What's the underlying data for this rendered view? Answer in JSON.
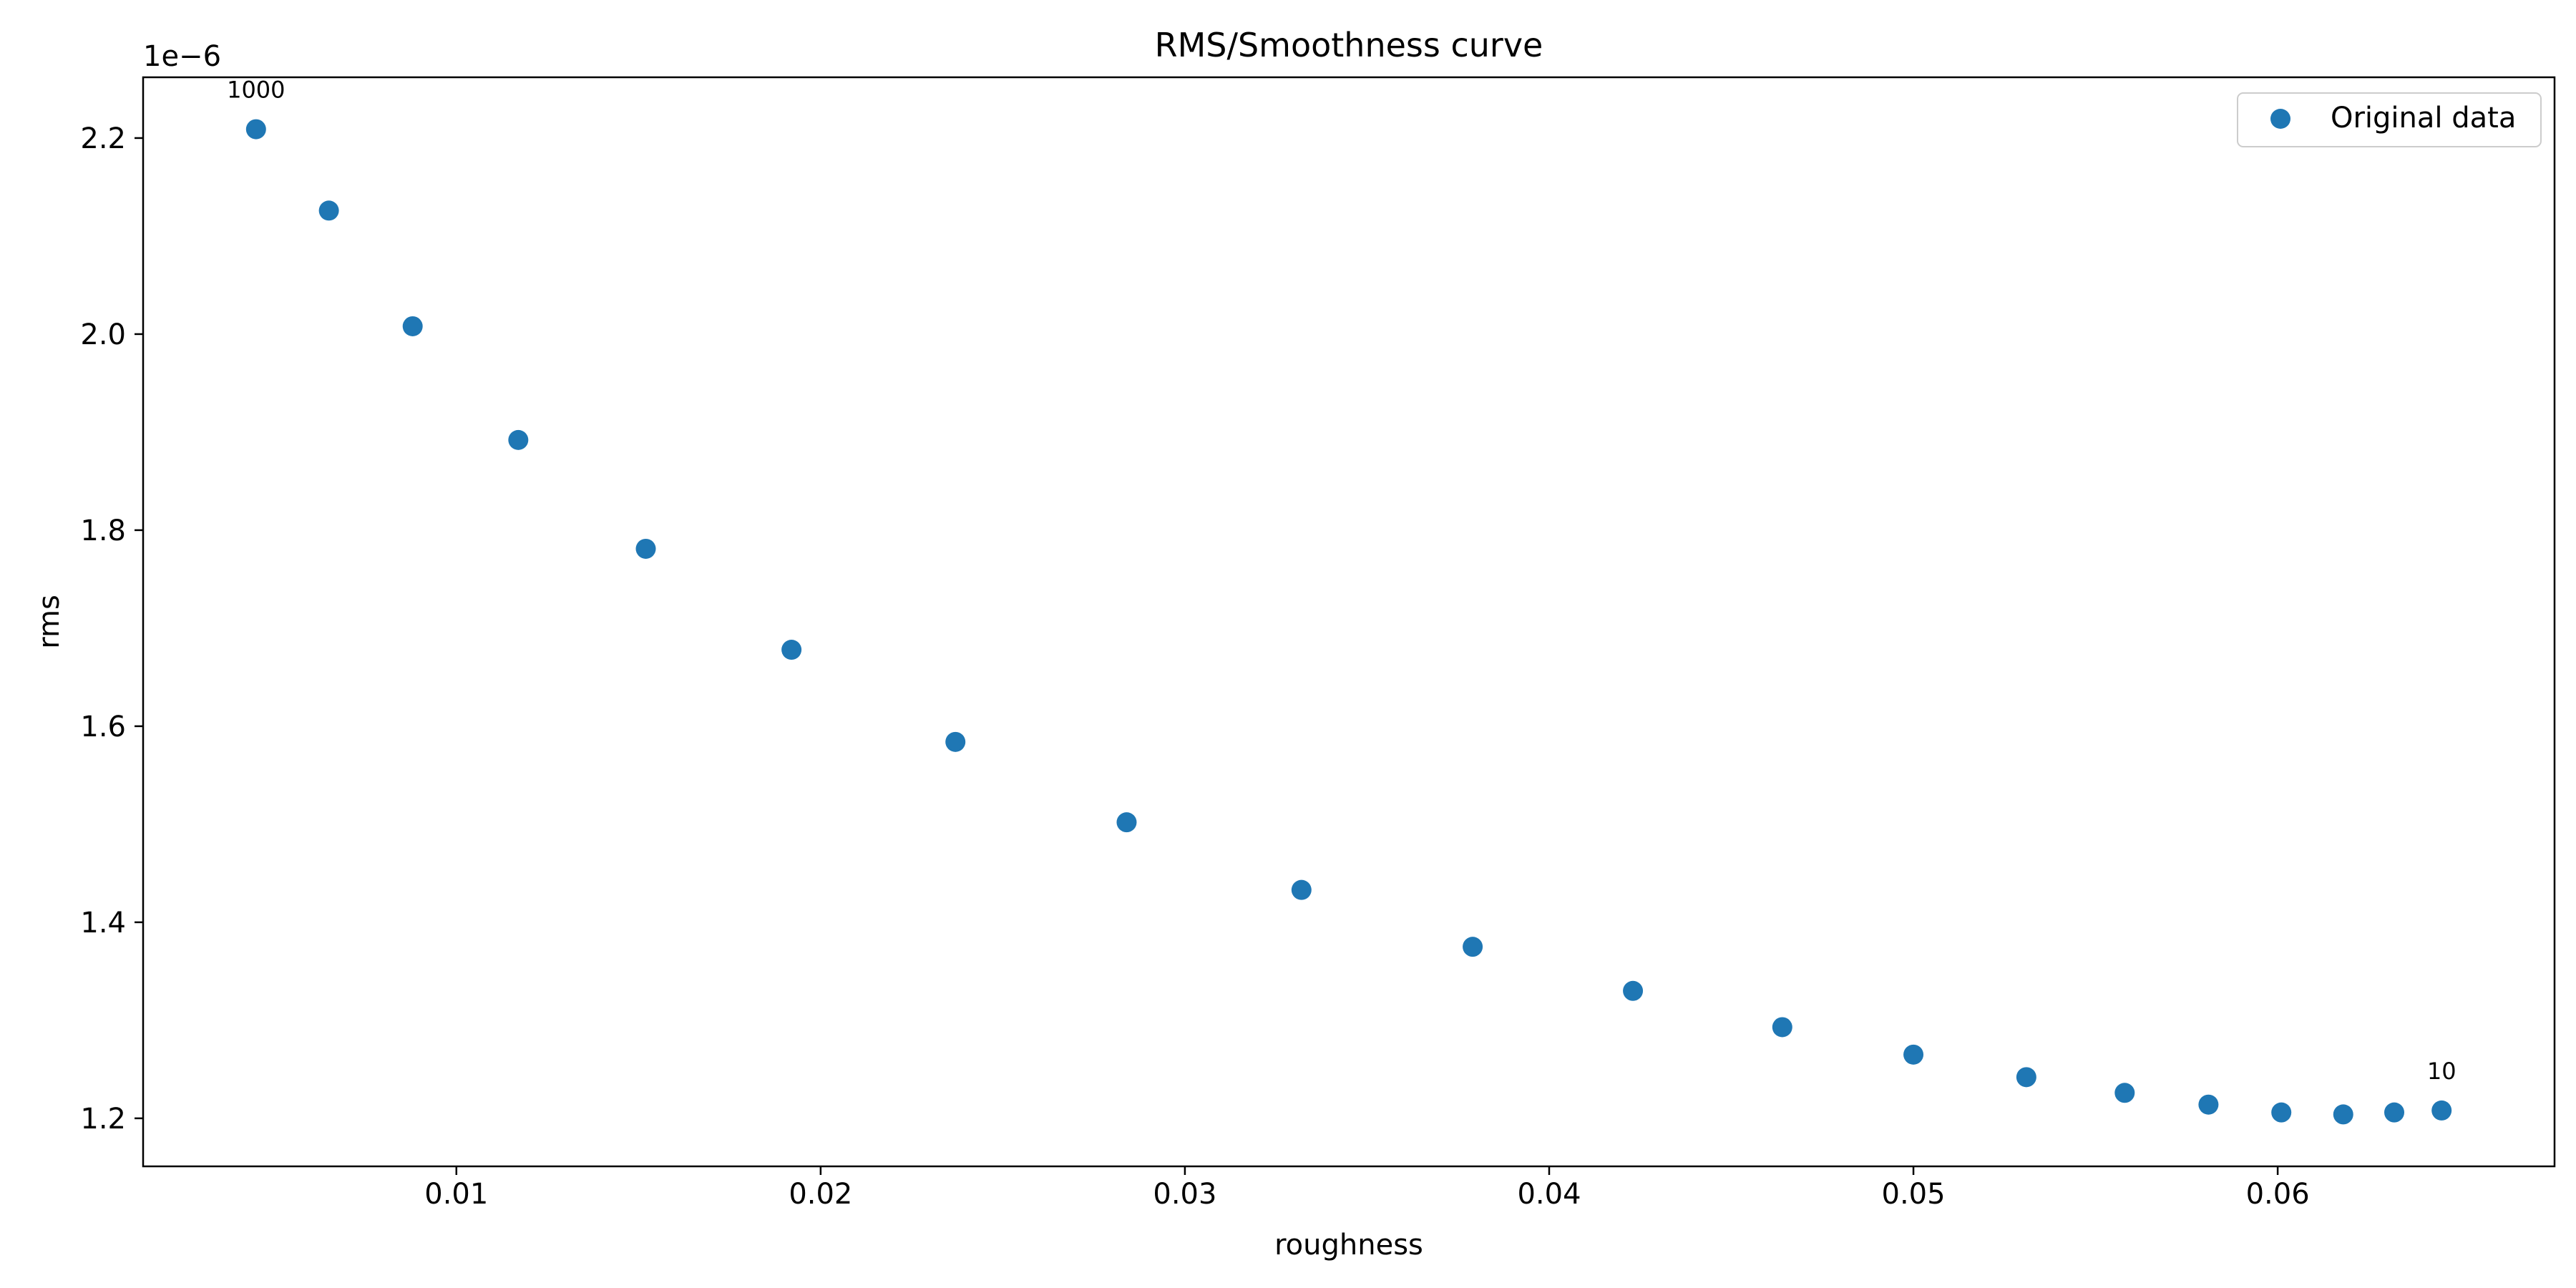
{
  "chart_data": {
    "type": "scatter",
    "title": "RMS/Smoothness curve",
    "xlabel": "roughness",
    "ylabel": "rms",
    "y_offset_label": "1e−6",
    "xlim": [
      0.0014,
      0.0676
    ],
    "ylim": [
      1.151,
      2.262
    ],
    "x_ticks": [
      0.01,
      0.02,
      0.03,
      0.04,
      0.05,
      0.06
    ],
    "x_tick_labels": [
      "0.01",
      "0.02",
      "0.03",
      "0.04",
      "0.05",
      "0.06"
    ],
    "y_ticks": [
      1.2,
      1.4,
      1.6,
      1.8,
      2.0,
      2.2
    ],
    "y_tick_labels": [
      "1.2",
      "1.4",
      "1.6",
      "1.8",
      "2.0",
      "2.2"
    ],
    "grid": false,
    "legend": {
      "position": "top-right",
      "entries": [
        "Original data"
      ]
    },
    "series": [
      {
        "name": "Original data",
        "color": "#1f77b4",
        "x": [
          0.0045,
          0.0065,
          0.0088,
          0.0117,
          0.0152,
          0.0192,
          0.0237,
          0.0284,
          0.0332,
          0.0379,
          0.0423,
          0.0464,
          0.05,
          0.0531,
          0.0558,
          0.0581,
          0.0601,
          0.0618,
          0.0632,
          0.0645
        ],
        "y": [
          2.209,
          2.126,
          2.008,
          1.892,
          1.781,
          1.678,
          1.584,
          1.502,
          1.433,
          1.375,
          1.33,
          1.293,
          1.265,
          1.242,
          1.226,
          1.214,
          1.206,
          1.204,
          1.206,
          1.208
        ]
      }
    ],
    "annotations": [
      {
        "text": "1000",
        "x": 0.0045,
        "y": 2.209
      },
      {
        "text": "10",
        "x": 0.0645,
        "y": 1.208
      }
    ]
  }
}
